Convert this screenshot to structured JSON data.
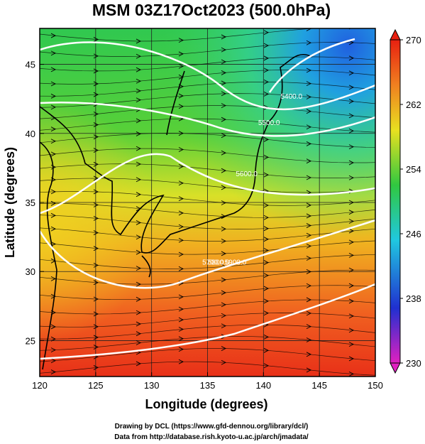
{
  "title": "MSM 03Z17Oct2023 (500.0hPa)",
  "xlabel": "Longitude (degrees)",
  "ylabel": "Latitude  (degrees)",
  "credits": [
    "Drawing by DCL (https://www.gfd-dennou.org/library/dcl/)",
    "Data from http://database.rish.kyoto-u.ac.jp/arch/jmadata/"
  ],
  "map": {
    "lon_range": [
      120,
      150
    ],
    "lat_range": [
      22.4,
      47.6
    ],
    "lon_ticks": [
      120,
      125,
      130,
      135,
      140,
      145,
      150
    ],
    "lat_ticks": [
      25,
      30,
      35,
      40,
      45
    ],
    "grid_lon": [
      125,
      130,
      135,
      140,
      145
    ],
    "grid_lat": [
      25,
      30,
      35,
      40,
      45
    ],
    "variable": "temperature (K) shaded, geopotential height contours, wind streamlines",
    "colorbar": {
      "min": 230,
      "max": 270,
      "ticks": [
        230,
        238,
        246,
        254,
        262,
        270
      ],
      "colors": [
        "#e020c0",
        "#2030d0",
        "#20c8e0",
        "#30c840",
        "#e8e020",
        "#f08020",
        "#e82010"
      ]
    },
    "contours": [
      {
        "label": "5400.0",
        "label_lon": 142.5,
        "label_lat": 42.4
      },
      {
        "label": "5500.0",
        "label_lon": 140.5,
        "label_lat": 40.5
      },
      {
        "label": "5600.0",
        "label_lon": 138.5,
        "label_lat": 36.8
      },
      {
        "label": "5700.0",
        "label_lon": 135.5,
        "label_lat": 30.4
      },
      {
        "label": "5800.0",
        "label_lon": 136.0,
        "label_lat": 30.4
      },
      {
        "label": "5900.0",
        "label_lon": 137.5,
        "label_lat": 30.4
      }
    ]
  }
}
